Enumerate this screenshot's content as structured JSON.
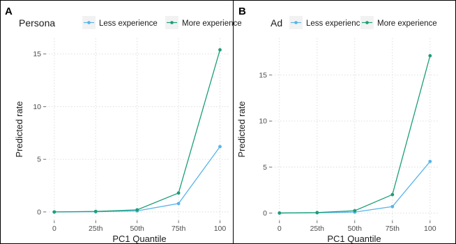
{
  "colors": {
    "less": "#56B4E9",
    "more": "#1B9E77"
  },
  "chart_data": [
    {
      "type": "line",
      "panel_label": "A",
      "legend_title": "Persona",
      "xlabel": "PC1 Quantile",
      "ylabel": "Predicted rate",
      "categories": [
        "0",
        "25th",
        "50th",
        "75th",
        "100"
      ],
      "ylim": [
        -0.8,
        16.5
      ],
      "yticks": [
        0,
        5,
        10,
        15
      ],
      "grid": true,
      "legend_position": "top",
      "series": [
        {
          "name": "Less experience",
          "color_key": "less",
          "values": [
            0.0,
            0.02,
            0.1,
            0.8,
            6.2
          ]
        },
        {
          "name": "More experience",
          "color_key": "more",
          "values": [
            0.0,
            0.05,
            0.2,
            1.8,
            15.4
          ]
        }
      ]
    },
    {
      "type": "line",
      "panel_label": "B",
      "legend_title": "Ad",
      "xlabel": "PC1 Quantile",
      "ylabel": "Predicted rate",
      "categories": [
        "0",
        "25th",
        "50th",
        "75th",
        "100"
      ],
      "ylim": [
        -0.8,
        19.0
      ],
      "yticks": [
        0,
        5,
        10,
        15
      ],
      "grid": true,
      "legend_position": "top",
      "series": [
        {
          "name": "Less experience",
          "color_key": "less",
          "values": [
            0.0,
            0.02,
            0.1,
            0.7,
            5.6
          ]
        },
        {
          "name": "More experience",
          "color_key": "more",
          "values": [
            0.0,
            0.05,
            0.25,
            2.0,
            17.1
          ]
        }
      ]
    }
  ]
}
